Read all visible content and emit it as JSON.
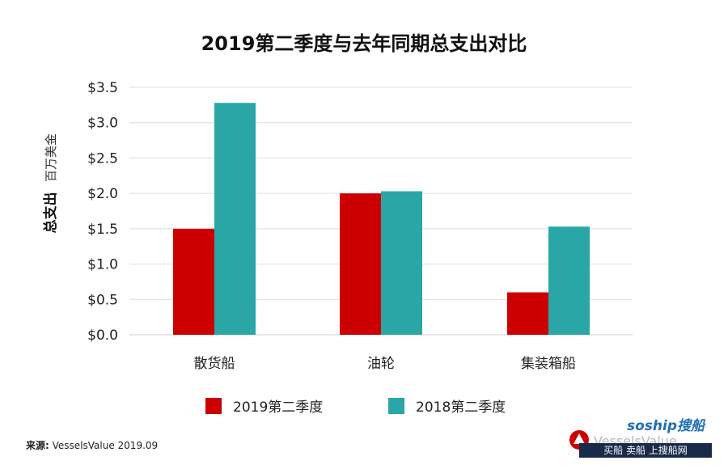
{
  "chart_data": {
    "type": "bar",
    "title": "2019第二季度与去年同期总支出对比",
    "ylabel_main": "总支出",
    "ylabel_unit": "百万美金",
    "categories": [
      "散货船",
      "油轮",
      "集装箱船"
    ],
    "series": [
      {
        "name": "2019第二季度",
        "color": "#cc0000",
        "values": [
          1.5,
          2.0,
          0.6
        ]
      },
      {
        "name": "2018第二季度",
        "color": "#2aa6a6",
        "values": [
          3.28,
          2.03,
          1.53
        ]
      }
    ],
    "yticks": [
      "$0.0",
      "$0.5",
      "$1.0",
      "$1.5",
      "$2.0",
      "$2.5",
      "$3.0",
      "$3.5"
    ],
    "ylim": [
      0,
      3.5
    ],
    "grid": true,
    "legend_position": "bottom"
  },
  "source": {
    "label": "来源:",
    "text": "VesselsValue 2019.09"
  },
  "watermark": {
    "brand": "soship搜船",
    "nav": "买船 卖船 上搜船网",
    "logo_text": "VesselsValue"
  }
}
